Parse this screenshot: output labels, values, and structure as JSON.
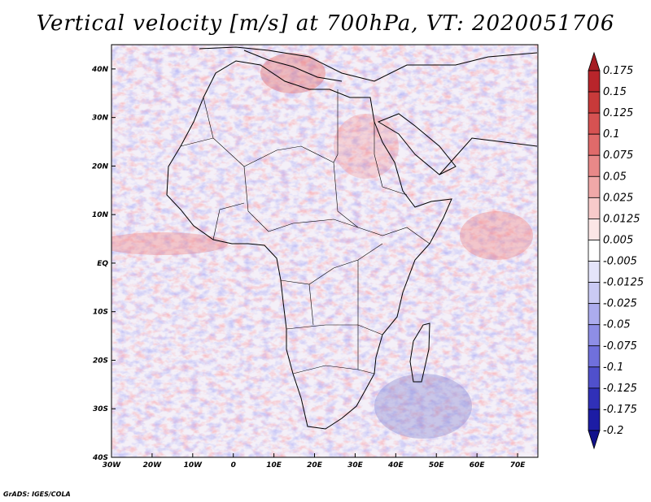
{
  "title": "Vertical velocity [m/s] at 700hPa, VT: 2020051706",
  "credit": "GrADS: IGES/COLA",
  "map": {
    "lon_range": [
      -30,
      75
    ],
    "lat_range": [
      -40,
      45
    ],
    "lon_ticks": [
      {
        "lon": -30,
        "label": "30W"
      },
      {
        "lon": -20,
        "label": "20W"
      },
      {
        "lon": -10,
        "label": "10W"
      },
      {
        "lon": 0,
        "label": "0"
      },
      {
        "lon": 10,
        "label": "10E"
      },
      {
        "lon": 20,
        "label": "20E"
      },
      {
        "lon": 30,
        "label": "30E"
      },
      {
        "lon": 40,
        "label": "40E"
      },
      {
        "lon": 50,
        "label": "50E"
      },
      {
        "lon": 60,
        "label": "60E"
      },
      {
        "lon": 70,
        "label": "70E"
      }
    ],
    "lat_ticks": [
      {
        "lat": 40,
        "label": "40N"
      },
      {
        "lat": 30,
        "label": "30N"
      },
      {
        "lat": 20,
        "label": "20N"
      },
      {
        "lat": 10,
        "label": "10N"
      },
      {
        "lat": 0,
        "label": "EQ"
      },
      {
        "lat": -10,
        "label": "10S"
      },
      {
        "lat": -20,
        "label": "20S"
      },
      {
        "lat": -30,
        "label": "30S"
      },
      {
        "lat": -40,
        "label": "40S"
      }
    ]
  },
  "colorbar": {
    "levels": [
      "0.175",
      "0.15",
      "0.125",
      "0.1",
      "0.075",
      "0.05",
      "0.025",
      "0.0125",
      "0.005",
      "-0.005",
      "-0.0125",
      "-0.025",
      "-0.05",
      "-0.075",
      "-0.1",
      "-0.125",
      "-0.175",
      "-0.2"
    ],
    "colors": [
      "#a51c22",
      "#b8252b",
      "#c83a3a",
      "#d65252",
      "#e06a6a",
      "#e88888",
      "#f0a8a8",
      "#f7caca",
      "#fbe6e6",
      "#ffffff",
      "#e4e4fa",
      "#cacaf4",
      "#acacee",
      "#8e8ee6",
      "#7070dc",
      "#5050cc",
      "#3030b8",
      "#1c1ca4",
      "#12128c"
    ]
  }
}
